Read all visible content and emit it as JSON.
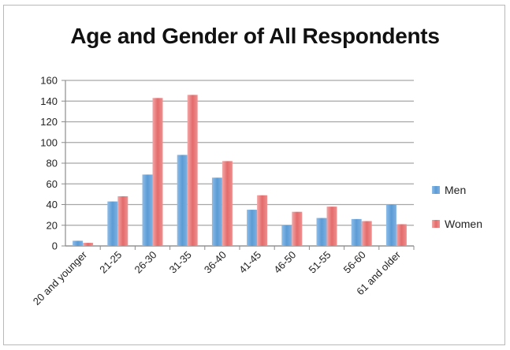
{
  "chart_data": {
    "type": "bar",
    "title": "Age and Gender of All Respondents",
    "categories": [
      "20 and younger",
      "21-25",
      "26-30",
      "31-35",
      "36-40",
      "41-45",
      "46-50",
      "51-55",
      "56-60",
      "61 and older"
    ],
    "series": [
      {
        "name": "Men",
        "color": "#5b9bd5",
        "values": [
          5,
          43,
          69,
          88,
          66,
          35,
          20,
          27,
          26,
          40
        ]
      },
      {
        "name": "Women",
        "color": "#e46b6b",
        "values": [
          3,
          48,
          143,
          146,
          82,
          49,
          33,
          38,
          24,
          21
        ]
      }
    ],
    "ylim": [
      0,
      160
    ],
    "yticks": [
      0,
      20,
      40,
      60,
      80,
      100,
      120,
      140,
      160
    ],
    "grid": true,
    "legend_position": "right"
  }
}
